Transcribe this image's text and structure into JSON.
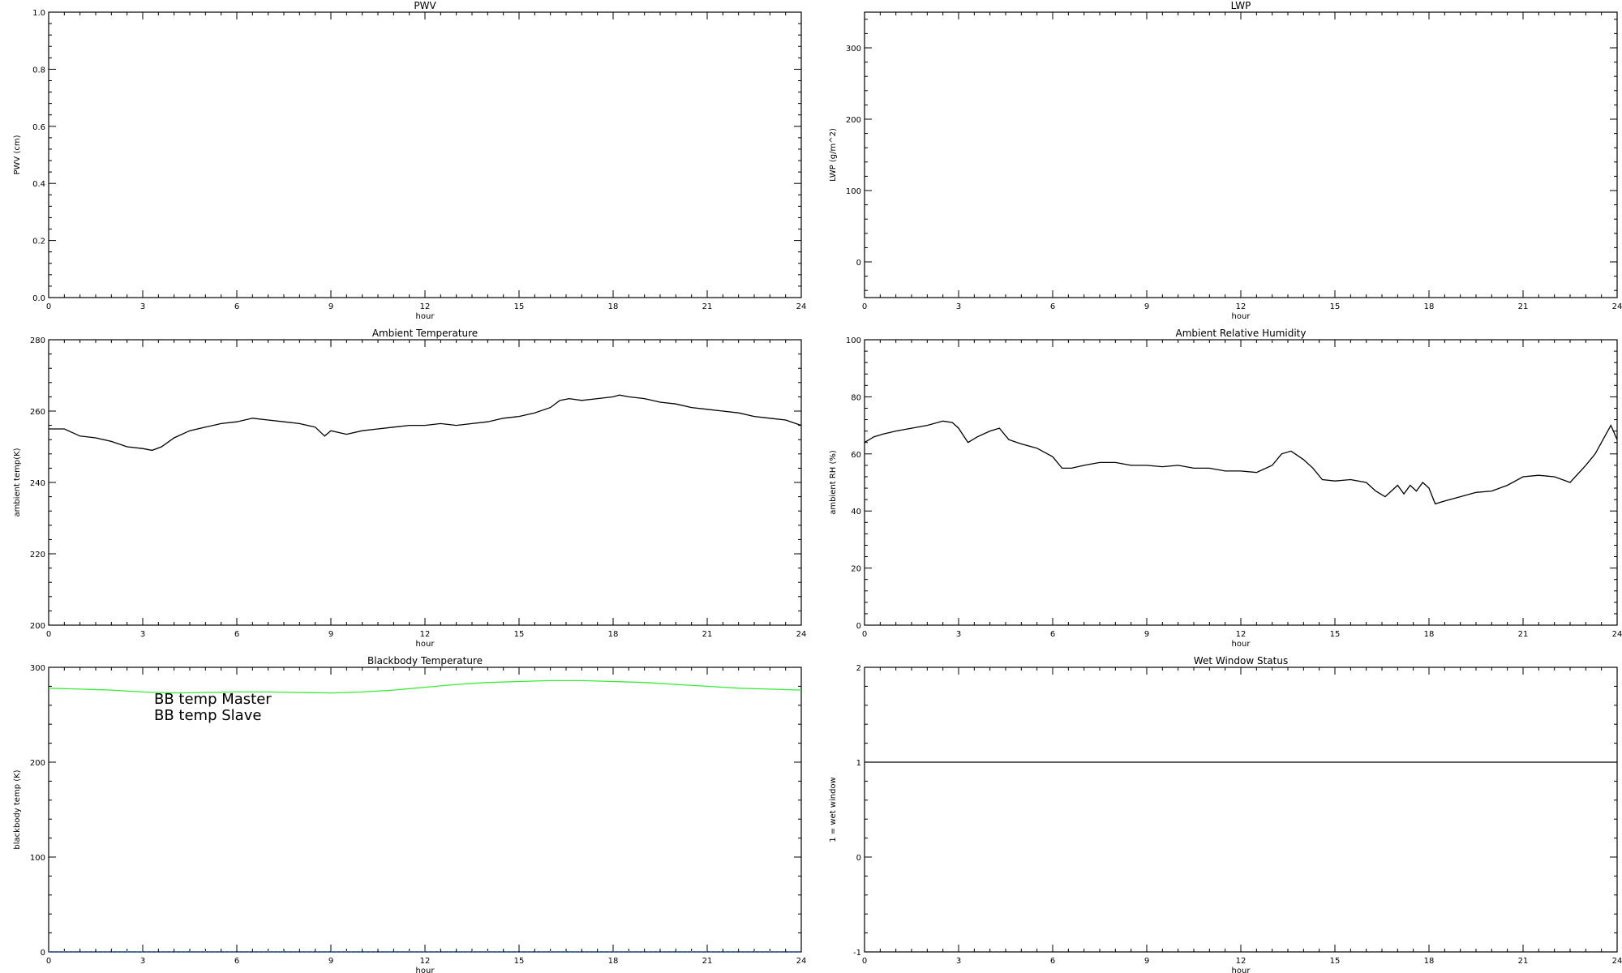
{
  "chart_data": [
    {
      "type": "line",
      "title": "PWV",
      "xlabel": "hour",
      "ylabel": "PWV (cm)",
      "xlim": [
        0,
        24
      ],
      "ylim": [
        0,
        1.0
      ],
      "xticks": [
        "0",
        "3",
        "6",
        "9",
        "12",
        "15",
        "18",
        "21",
        "24"
      ],
      "yticks": [
        "0.0",
        "0.2",
        "0.4",
        "0.6",
        "0.8",
        "1.0"
      ],
      "series": []
    },
    {
      "type": "line",
      "title": "LWP",
      "xlabel": "hour",
      "ylabel": "LWP (g/m^2)",
      "xlim": [
        0,
        24
      ],
      "ylim": [
        -50,
        350
      ],
      "xticks": [
        "0",
        "3",
        "6",
        "9",
        "12",
        "15",
        "18",
        "21",
        "24"
      ],
      "yticks": [
        "0",
        "100",
        "200",
        "300"
      ],
      "series": []
    },
    {
      "type": "line",
      "title": "Ambient Temperature",
      "xlabel": "hour",
      "ylabel": "ambient temp(K)",
      "xlim": [
        0,
        24
      ],
      "ylim": [
        200,
        280
      ],
      "xticks": [
        "0",
        "3",
        "6",
        "9",
        "12",
        "15",
        "18",
        "21",
        "24"
      ],
      "yticks": [
        "200",
        "220",
        "240",
        "260",
        "280"
      ],
      "series": [
        {
          "color": "#000000",
          "x": [
            0,
            0.5,
            1,
            1.5,
            2,
            2.5,
            3,
            3.3,
            3.6,
            4,
            4.5,
            5,
            5.5,
            6,
            6.5,
            7,
            7.5,
            8,
            8.5,
            8.8,
            9,
            9.5,
            10,
            10.5,
            11,
            11.5,
            12,
            12.5,
            13,
            13.5,
            14,
            14.5,
            15,
            15.5,
            16,
            16.3,
            16.6,
            17,
            17.5,
            18,
            18.2,
            18.5,
            19,
            19.5,
            20,
            20.5,
            21,
            21.5,
            22,
            22.5,
            23,
            23.5,
            24
          ],
          "y": [
            255,
            255,
            253,
            252.5,
            251.5,
            250,
            249.5,
            249,
            250,
            252.5,
            254.5,
            255.5,
            256.5,
            257,
            258,
            257.5,
            257,
            256.5,
            255.5,
            253,
            254.5,
            253.5,
            254.5,
            255,
            255.5,
            256,
            256,
            256.5,
            256,
            256.5,
            257,
            258,
            258.5,
            259.5,
            261,
            263,
            263.5,
            263,
            263.5,
            264,
            264.5,
            264,
            263.5,
            262.5,
            262,
            261,
            260.5,
            260,
            259.5,
            258.5,
            258,
            257.5,
            256
          ]
        }
      ]
    },
    {
      "type": "line",
      "title": "Ambient Relative Humidity",
      "xlabel": "hour",
      "ylabel": "ambient RH (%)",
      "xlim": [
        0,
        24
      ],
      "ylim": [
        0,
        100
      ],
      "xticks": [
        "0",
        "3",
        "6",
        "9",
        "12",
        "15",
        "18",
        "21",
        "24"
      ],
      "yticks": [
        "0",
        "20",
        "40",
        "60",
        "80",
        "100"
      ],
      "series": [
        {
          "color": "#000000",
          "x": [
            0,
            0.3,
            0.6,
            1,
            1.5,
            2,
            2.5,
            2.8,
            3,
            3.3,
            3.6,
            4,
            4.3,
            4.6,
            5,
            5.5,
            6,
            6.3,
            6.6,
            7,
            7.5,
            8,
            8.5,
            9,
            9.5,
            10,
            10.5,
            11,
            11.5,
            12,
            12.5,
            13,
            13.3,
            13.6,
            14,
            14.3,
            14.6,
            15,
            15.5,
            16,
            16.3,
            16.6,
            16.8,
            17,
            17.2,
            17.4,
            17.6,
            17.8,
            18,
            18.2,
            18.5,
            19,
            19.5,
            20,
            20.5,
            21,
            21.5,
            22,
            22.5,
            23,
            23.3,
            23.6,
            23.8,
            24
          ],
          "y": [
            64,
            66,
            67,
            68,
            69,
            70,
            71.5,
            71,
            69,
            64,
            66,
            68,
            69,
            65,
            63.5,
            62,
            59,
            55,
            55,
            56,
            57,
            57,
            56,
            56,
            55.5,
            56,
            55,
            55,
            54,
            54,
            53.5,
            56,
            60,
            61,
            58,
            55,
            51,
            50.5,
            51,
            50,
            47,
            45,
            47,
            49,
            46,
            49,
            47,
            50,
            48,
            42.5,
            43.5,
            45,
            46.5,
            47,
            49,
            52,
            52.5,
            52,
            50,
            56,
            60,
            66,
            70,
            65
          ]
        }
      ]
    },
    {
      "type": "line",
      "title": "Blackbody Temperature",
      "xlabel": "hour",
      "ylabel": "blackbody temp (K)",
      "xlim": [
        0,
        24
      ],
      "ylim": [
        0,
        300
      ],
      "xticks": [
        "0",
        "3",
        "6",
        "9",
        "12",
        "15",
        "18",
        "21",
        "24"
      ],
      "yticks": [
        "0",
        "100",
        "200",
        "300"
      ],
      "series": [
        {
          "name": "BB temp Master",
          "color": "#2a7fff",
          "x": [
            0,
            24
          ],
          "y": [
            0,
            0
          ]
        },
        {
          "name": "BB temp Slave",
          "color": "#33ee33",
          "x": [
            0,
            1,
            2,
            3,
            4,
            5,
            6,
            7,
            8,
            9,
            10,
            11,
            12,
            13,
            14,
            15,
            16,
            17,
            18,
            19,
            20,
            21,
            22,
            23,
            24
          ],
          "y": [
            278,
            277,
            276,
            274,
            273,
            273.5,
            274,
            274,
            273.5,
            273,
            274,
            276,
            279,
            282,
            284,
            285,
            286,
            286,
            285,
            284,
            282,
            280,
            278,
            277,
            276
          ]
        }
      ]
    },
    {
      "type": "line",
      "title": "Wet Window Status",
      "xlabel": "hour",
      "ylabel": "1 = wet window",
      "xlim": [
        0,
        24
      ],
      "ylim": [
        -1,
        2
      ],
      "xticks": [
        "0",
        "3",
        "6",
        "9",
        "12",
        "15",
        "18",
        "21",
        "24"
      ],
      "yticks": [
        "-1",
        "0",
        "1",
        "2"
      ],
      "series": [
        {
          "color": "#000000",
          "x": [
            0,
            24
          ],
          "y": [
            1,
            1
          ]
        }
      ]
    }
  ]
}
